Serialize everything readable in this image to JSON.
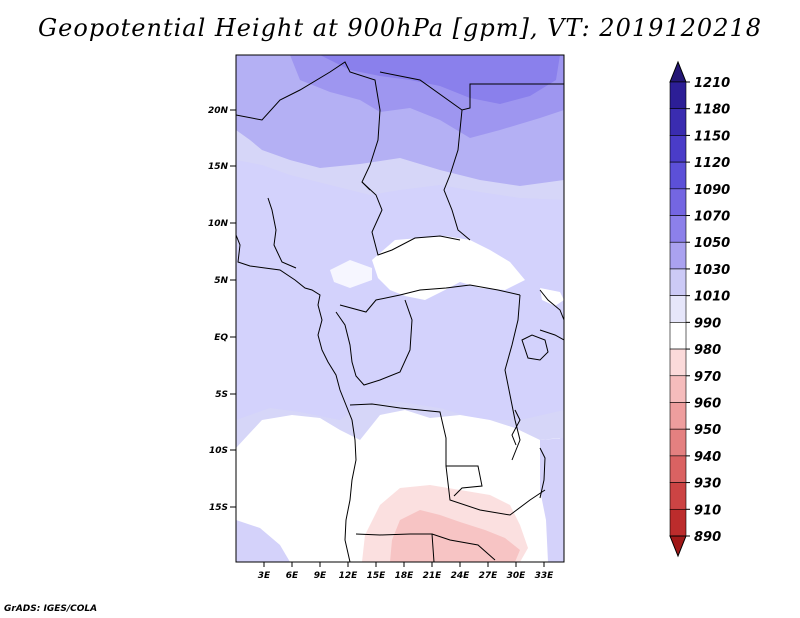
{
  "title": "Geopotential Height at 900hPa [gpm], VT: 2019120218",
  "footer": "GrADS: IGES/COLA",
  "y_ticks": [
    "20N",
    "15N",
    "10N",
    "5N",
    "EQ",
    "5S",
    "10S",
    "15S"
  ],
  "x_ticks": [
    "3E",
    "6E",
    "9E",
    "12E",
    "15E",
    "18E",
    "21E",
    "24E",
    "27E",
    "30E",
    "33E"
  ],
  "colorbar": {
    "labels": [
      "1210",
      "1180",
      "1150",
      "1120",
      "1090",
      "1070",
      "1050",
      "1030",
      "1010",
      "990",
      "980",
      "970",
      "960",
      "950",
      "940",
      "930",
      "910",
      "890"
    ],
    "colors": [
      "#241675",
      "#2c1e96",
      "#3a2cb0",
      "#4a3cc8",
      "#5c50d8",
      "#7466e2",
      "#8c80ea",
      "#aaa2f0",
      "#cccaf6",
      "#e6e6fa",
      "#ffffff",
      "#fbdada",
      "#f5bcbc",
      "#ee9e9e",
      "#e48080",
      "#da6262",
      "#cc4444",
      "#bc2c2c",
      "#a01818"
    ]
  }
}
